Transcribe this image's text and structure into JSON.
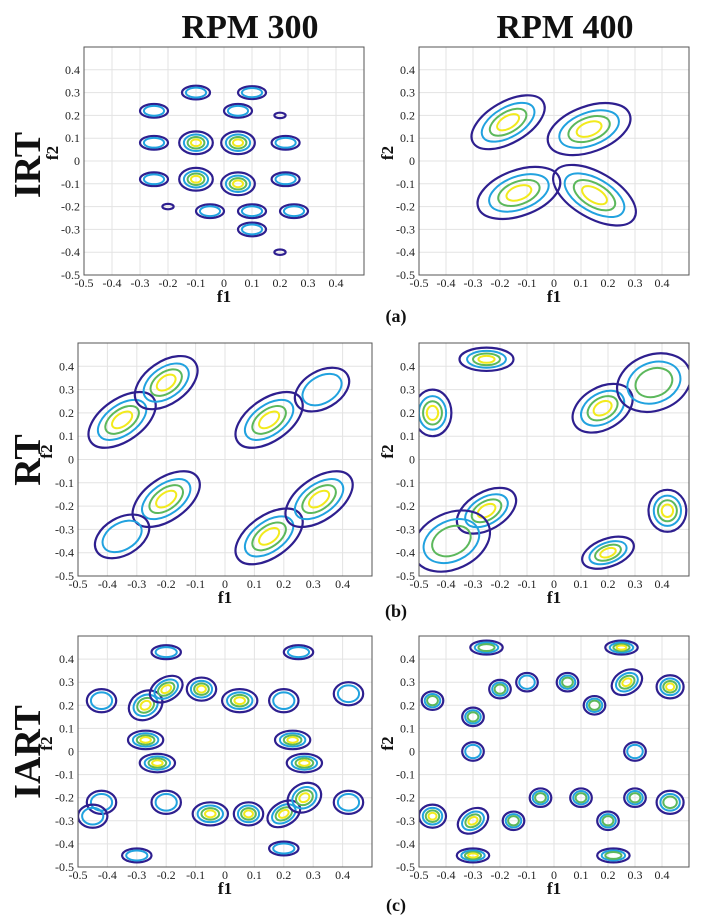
{
  "column_titles": [
    "RPM 300",
    "RPM 400"
  ],
  "row_titles": [
    "IRT",
    "RT",
    "IART"
  ],
  "panel_labels": [
    "(a)",
    "(b)",
    "(c)"
  ],
  "colors": {
    "level1": "#2e1f8f",
    "level2": "#21a2df",
    "level3": "#5cb85c",
    "level4": "#f2ea1c"
  },
  "chart_data": [
    {
      "type": "contour",
      "row": "IRT",
      "column": "RPM 300",
      "xlabel": "f1",
      "ylabel": "f2",
      "xlim": [
        -0.5,
        0.5
      ],
      "ylim": [
        -0.5,
        0.5
      ],
      "grid": true,
      "xticks": [
        "-0.5",
        "-0.4",
        "-0.3",
        "-0.2",
        "-0.1",
        "0",
        "0.1",
        "0.2",
        "0.3",
        "0.4"
      ],
      "yticks": [
        "0.4",
        "0.3",
        "0.2",
        "0.1",
        "0",
        "-0.1",
        "-0.2",
        "-0.3",
        "-0.4",
        "-0.5"
      ],
      "blobs": [
        {
          "cx": 0.1,
          "cy": 0.3,
          "rx": 0.05,
          "ry": 0.028,
          "angle": 0,
          "levels": 2
        },
        {
          "cx": -0.1,
          "cy": 0.3,
          "rx": 0.05,
          "ry": 0.03,
          "angle": 0,
          "levels": 2
        },
        {
          "cx": -0.25,
          "cy": 0.22,
          "rx": 0.05,
          "ry": 0.03,
          "angle": 0,
          "levels": 2
        },
        {
          "cx": 0.05,
          "cy": 0.22,
          "rx": 0.05,
          "ry": 0.03,
          "angle": 0,
          "levels": 2
        },
        {
          "cx": 0.2,
          "cy": 0.2,
          "rx": 0.02,
          "ry": 0.012,
          "angle": 0,
          "levels": 1
        },
        {
          "cx": -0.25,
          "cy": 0.08,
          "rx": 0.05,
          "ry": 0.03,
          "angle": 0,
          "levels": 2
        },
        {
          "cx": -0.1,
          "cy": 0.08,
          "rx": 0.06,
          "ry": 0.05,
          "angle": 0,
          "levels": 4
        },
        {
          "cx": 0.05,
          "cy": 0.08,
          "rx": 0.06,
          "ry": 0.05,
          "angle": 0,
          "levels": 4
        },
        {
          "cx": 0.22,
          "cy": 0.08,
          "rx": 0.05,
          "ry": 0.03,
          "angle": 0,
          "levels": 2
        },
        {
          "cx": -0.25,
          "cy": -0.08,
          "rx": 0.05,
          "ry": 0.03,
          "angle": 0,
          "levels": 2
        },
        {
          "cx": -0.1,
          "cy": -0.08,
          "rx": 0.06,
          "ry": 0.05,
          "angle": 0,
          "levels": 4
        },
        {
          "cx": 0.05,
          "cy": -0.1,
          "rx": 0.06,
          "ry": 0.05,
          "angle": 0,
          "levels": 4
        },
        {
          "cx": 0.22,
          "cy": -0.08,
          "rx": 0.05,
          "ry": 0.03,
          "angle": 0,
          "levels": 2
        },
        {
          "cx": -0.2,
          "cy": -0.2,
          "rx": 0.02,
          "ry": 0.012,
          "angle": 0,
          "levels": 1
        },
        {
          "cx": -0.05,
          "cy": -0.22,
          "rx": 0.05,
          "ry": 0.03,
          "angle": 0,
          "levels": 2
        },
        {
          "cx": 0.1,
          "cy": -0.22,
          "rx": 0.05,
          "ry": 0.03,
          "angle": 0,
          "levels": 2
        },
        {
          "cx": 0.25,
          "cy": -0.22,
          "rx": 0.05,
          "ry": 0.03,
          "angle": 0,
          "levels": 2
        },
        {
          "cx": 0.1,
          "cy": -0.3,
          "rx": 0.05,
          "ry": 0.03,
          "angle": 0,
          "levels": 2
        },
        {
          "cx": 0.2,
          "cy": -0.4,
          "rx": 0.02,
          "ry": 0.012,
          "angle": 0,
          "levels": 1
        }
      ]
    },
    {
      "type": "contour",
      "row": "IRT",
      "column": "RPM 400",
      "xlabel": "f1",
      "ylabel": "f2",
      "xlim": [
        -0.5,
        0.5
      ],
      "ylim": [
        -0.5,
        0.5
      ],
      "grid": true,
      "xticks": [
        "-0.5",
        "-0.4",
        "-0.3",
        "-0.2",
        "-0.1",
        "0",
        "0.1",
        "0.2",
        "0.3",
        "0.4"
      ],
      "yticks": [
        "0.4",
        "0.3",
        "0.2",
        "0.1",
        "0",
        "-0.1",
        "-0.2",
        "-0.3",
        "-0.4",
        "-0.5"
      ],
      "blobs": [
        {
          "cx": -0.17,
          "cy": 0.17,
          "rx": 0.15,
          "ry": 0.09,
          "angle": -30,
          "levels": 4
        },
        {
          "cx": 0.13,
          "cy": 0.14,
          "rx": 0.16,
          "ry": 0.1,
          "angle": -20,
          "levels": 4
        },
        {
          "cx": -0.13,
          "cy": -0.14,
          "rx": 0.16,
          "ry": 0.1,
          "angle": -20,
          "levels": 4
        },
        {
          "cx": 0.15,
          "cy": -0.15,
          "rx": 0.17,
          "ry": 0.1,
          "angle": 30,
          "levels": 4
        }
      ]
    },
    {
      "type": "contour",
      "row": "RT",
      "column": "RPM 300",
      "xlabel": "f1",
      "ylabel": "f2",
      "xlim": [
        -0.5,
        0.5
      ],
      "ylim": [
        -0.5,
        0.5
      ],
      "grid": true,
      "xticks": [
        "-0.5",
        "-0.4",
        "-0.3",
        "-0.2",
        "-0.1",
        "0",
        "0.1",
        "0.2",
        "0.3",
        "0.4"
      ],
      "yticks": [
        "0.4",
        "0.3",
        "0.2",
        "0.1",
        "0",
        "-0.1",
        "-0.2",
        "-0.3",
        "-0.4",
        "-0.5"
      ],
      "blobs": [
        {
          "cx": -0.35,
          "cy": 0.17,
          "rx": 0.13,
          "ry": 0.09,
          "angle": -35,
          "levels": 4
        },
        {
          "cx": -0.2,
          "cy": 0.33,
          "rx": 0.12,
          "ry": 0.09,
          "angle": -35,
          "levels": 4
        },
        {
          "cx": 0.15,
          "cy": 0.17,
          "rx": 0.13,
          "ry": 0.09,
          "angle": -35,
          "levels": 4
        },
        {
          "cx": 0.33,
          "cy": 0.3,
          "rx": 0.1,
          "ry": 0.08,
          "angle": -30,
          "levels": 2
        },
        {
          "cx": -0.2,
          "cy": -0.17,
          "rx": 0.13,
          "ry": 0.09,
          "angle": -35,
          "levels": 4
        },
        {
          "cx": -0.35,
          "cy": -0.33,
          "rx": 0.1,
          "ry": 0.08,
          "angle": -30,
          "levels": 2
        },
        {
          "cx": 0.15,
          "cy": -0.33,
          "rx": 0.13,
          "ry": 0.09,
          "angle": -35,
          "levels": 4
        },
        {
          "cx": 0.32,
          "cy": -0.17,
          "rx": 0.13,
          "ry": 0.09,
          "angle": -35,
          "levels": 4
        }
      ]
    },
    {
      "type": "contour",
      "row": "RT",
      "column": "RPM 400",
      "xlabel": "f1",
      "ylabel": "f2",
      "xlim": [
        -0.5,
        0.5
      ],
      "ylim": [
        -0.5,
        0.5
      ],
      "grid": true,
      "xticks": [
        "-0.5",
        "-0.4",
        "-0.3",
        "-0.2",
        "-0.1",
        "0",
        "0.1",
        "0.2",
        "0.3",
        "0.4"
      ],
      "yticks": [
        "0.4",
        "0.3",
        "0.2",
        "0.1",
        "0",
        "-0.1",
        "-0.2",
        "-0.3",
        "-0.4",
        "-0.5"
      ],
      "blobs": [
        {
          "cx": -0.25,
          "cy": 0.43,
          "rx": 0.1,
          "ry": 0.05,
          "angle": 0,
          "levels": 4
        },
        {
          "cx": -0.45,
          "cy": 0.2,
          "rx": 0.07,
          "ry": 0.1,
          "angle": 0,
          "levels": 4
        },
        {
          "cx": 0.18,
          "cy": 0.22,
          "rx": 0.12,
          "ry": 0.09,
          "angle": -30,
          "levels": 4
        },
        {
          "cx": 0.37,
          "cy": 0.33,
          "rx": 0.14,
          "ry": 0.12,
          "angle": -20,
          "levels": 3
        },
        {
          "cx": -0.25,
          "cy": -0.22,
          "rx": 0.12,
          "ry": 0.08,
          "angle": -30,
          "levels": 4
        },
        {
          "cx": -0.38,
          "cy": -0.35,
          "rx": 0.15,
          "ry": 0.12,
          "angle": -25,
          "levels": 3
        },
        {
          "cx": 0.2,
          "cy": -0.4,
          "rx": 0.1,
          "ry": 0.06,
          "angle": -20,
          "levels": 4
        },
        {
          "cx": 0.42,
          "cy": -0.22,
          "rx": 0.07,
          "ry": 0.09,
          "angle": 0,
          "levels": 4
        }
      ]
    },
    {
      "type": "contour",
      "row": "IART",
      "column": "RPM 300",
      "xlabel": "f1",
      "ylabel": "f2",
      "xlim": [
        -0.5,
        0.5
      ],
      "ylim": [
        -0.5,
        0.5
      ],
      "grid": true,
      "xticks": [
        "-0.5",
        "-0.4",
        "-0.3",
        "-0.2",
        "-0.1",
        "0",
        "0.1",
        "0.2",
        "0.3",
        "0.4"
      ],
      "yticks": [
        "0.4",
        "0.3",
        "0.2",
        "0.1",
        "0",
        "-0.1",
        "-0.2",
        "-0.3",
        "-0.4",
        "-0.5"
      ],
      "blobs": [
        {
          "cx": -0.2,
          "cy": 0.43,
          "rx": 0.05,
          "ry": 0.03,
          "angle": 0,
          "levels": 2
        },
        {
          "cx": 0.25,
          "cy": 0.43,
          "rx": 0.05,
          "ry": 0.03,
          "angle": 0,
          "levels": 2
        },
        {
          "cx": -0.42,
          "cy": 0.22,
          "rx": 0.05,
          "ry": 0.05,
          "angle": 0,
          "levels": 2
        },
        {
          "cx": -0.27,
          "cy": 0.2,
          "rx": 0.06,
          "ry": 0.06,
          "angle": -30,
          "levels": 4
        },
        {
          "cx": -0.2,
          "cy": 0.27,
          "rx": 0.06,
          "ry": 0.05,
          "angle": -30,
          "levels": 4
        },
        {
          "cx": -0.08,
          "cy": 0.27,
          "rx": 0.05,
          "ry": 0.05,
          "angle": 0,
          "levels": 4
        },
        {
          "cx": 0.05,
          "cy": 0.22,
          "rx": 0.06,
          "ry": 0.05,
          "angle": 0,
          "levels": 4
        },
        {
          "cx": 0.2,
          "cy": 0.22,
          "rx": 0.05,
          "ry": 0.05,
          "angle": 0,
          "levels": 2
        },
        {
          "cx": 0.42,
          "cy": 0.25,
          "rx": 0.05,
          "ry": 0.05,
          "angle": 0,
          "levels": 2
        },
        {
          "cx": -0.27,
          "cy": 0.05,
          "rx": 0.06,
          "ry": 0.04,
          "angle": 0,
          "levels": 4
        },
        {
          "cx": 0.23,
          "cy": 0.05,
          "rx": 0.06,
          "ry": 0.04,
          "angle": 0,
          "levels": 4
        },
        {
          "cx": -0.23,
          "cy": -0.05,
          "rx": 0.06,
          "ry": 0.04,
          "angle": 0,
          "levels": 4
        },
        {
          "cx": 0.27,
          "cy": -0.05,
          "rx": 0.06,
          "ry": 0.04,
          "angle": 0,
          "levels": 4
        },
        {
          "cx": -0.42,
          "cy": -0.22,
          "rx": 0.05,
          "ry": 0.05,
          "angle": 0,
          "levels": 2
        },
        {
          "cx": -0.2,
          "cy": -0.22,
          "rx": 0.05,
          "ry": 0.05,
          "angle": 0,
          "levels": 2
        },
        {
          "cx": -0.05,
          "cy": -0.27,
          "rx": 0.06,
          "ry": 0.05,
          "angle": 0,
          "levels": 4
        },
        {
          "cx": 0.08,
          "cy": -0.27,
          "rx": 0.05,
          "ry": 0.05,
          "angle": 0,
          "levels": 4
        },
        {
          "cx": 0.2,
          "cy": -0.27,
          "rx": 0.06,
          "ry": 0.05,
          "angle": -30,
          "levels": 4
        },
        {
          "cx": 0.27,
          "cy": -0.2,
          "rx": 0.06,
          "ry": 0.06,
          "angle": -30,
          "levels": 4
        },
        {
          "cx": 0.42,
          "cy": -0.22,
          "rx": 0.05,
          "ry": 0.05,
          "angle": 0,
          "levels": 2
        },
        {
          "cx": -0.45,
          "cy": -0.28,
          "rx": 0.05,
          "ry": 0.05,
          "angle": 0,
          "levels": 2
        },
        {
          "cx": -0.3,
          "cy": -0.45,
          "rx": 0.05,
          "ry": 0.03,
          "angle": 0,
          "levels": 2
        },
        {
          "cx": 0.2,
          "cy": -0.42,
          "rx": 0.05,
          "ry": 0.03,
          "angle": 0,
          "levels": 2
        }
      ]
    },
    {
      "type": "contour",
      "row": "IART",
      "column": "RPM 400",
      "xlabel": "f1",
      "ylabel": "f2",
      "xlim": [
        -0.5,
        0.5
      ],
      "ylim": [
        -0.5,
        0.5
      ],
      "grid": true,
      "xticks": [
        "-0.5",
        "-0.4",
        "-0.3",
        "-0.2",
        "-0.1",
        "0",
        "0.1",
        "0.2",
        "0.3",
        "0.4"
      ],
      "yticks": [
        "0.4",
        "0.3",
        "0.2",
        "0.1",
        "0",
        "-0.1",
        "-0.2",
        "-0.3",
        "-0.4",
        "-0.5"
      ],
      "blobs": [
        {
          "cx": -0.25,
          "cy": 0.45,
          "rx": 0.06,
          "ry": 0.03,
          "angle": 0,
          "levels": 3
        },
        {
          "cx": 0.25,
          "cy": 0.45,
          "rx": 0.06,
          "ry": 0.03,
          "angle": 0,
          "levels": 4
        },
        {
          "cx": -0.45,
          "cy": 0.22,
          "rx": 0.04,
          "ry": 0.04,
          "angle": 0,
          "levels": 3
        },
        {
          "cx": -0.3,
          "cy": 0.15,
          "rx": 0.04,
          "ry": 0.04,
          "angle": 0,
          "levels": 3
        },
        {
          "cx": -0.2,
          "cy": 0.27,
          "rx": 0.04,
          "ry": 0.04,
          "angle": 0,
          "levels": 3
        },
        {
          "cx": -0.1,
          "cy": 0.3,
          "rx": 0.04,
          "ry": 0.04,
          "angle": 0,
          "levels": 2
        },
        {
          "cx": 0.05,
          "cy": 0.3,
          "rx": 0.04,
          "ry": 0.04,
          "angle": 0,
          "levels": 3
        },
        {
          "cx": 0.15,
          "cy": 0.2,
          "rx": 0.04,
          "ry": 0.04,
          "angle": 0,
          "levels": 3
        },
        {
          "cx": 0.27,
          "cy": 0.3,
          "rx": 0.06,
          "ry": 0.05,
          "angle": -30,
          "levels": 4
        },
        {
          "cx": 0.43,
          "cy": 0.28,
          "rx": 0.05,
          "ry": 0.05,
          "angle": 0,
          "levels": 4
        },
        {
          "cx": -0.3,
          "cy": 0.0,
          "rx": 0.04,
          "ry": 0.04,
          "angle": 0,
          "levels": 2
        },
        {
          "cx": 0.3,
          "cy": 0.0,
          "rx": 0.04,
          "ry": 0.04,
          "angle": 0,
          "levels": 2
        },
        {
          "cx": -0.45,
          "cy": -0.28,
          "rx": 0.05,
          "ry": 0.05,
          "angle": 0,
          "levels": 4
        },
        {
          "cx": -0.3,
          "cy": -0.3,
          "rx": 0.06,
          "ry": 0.05,
          "angle": -30,
          "levels": 4
        },
        {
          "cx": -0.15,
          "cy": -0.3,
          "rx": 0.04,
          "ry": 0.04,
          "angle": 0,
          "levels": 3
        },
        {
          "cx": -0.05,
          "cy": -0.2,
          "rx": 0.04,
          "ry": 0.04,
          "angle": 0,
          "levels": 3
        },
        {
          "cx": 0.1,
          "cy": -0.2,
          "rx": 0.04,
          "ry": 0.04,
          "angle": 0,
          "levels": 3
        },
        {
          "cx": 0.2,
          "cy": -0.3,
          "rx": 0.04,
          "ry": 0.04,
          "angle": 0,
          "levels": 3
        },
        {
          "cx": 0.3,
          "cy": -0.2,
          "rx": 0.04,
          "ry": 0.04,
          "angle": 0,
          "levels": 3
        },
        {
          "cx": 0.43,
          "cy": -0.22,
          "rx": 0.05,
          "ry": 0.05,
          "angle": 0,
          "levels": 3
        },
        {
          "cx": -0.3,
          "cy": -0.45,
          "rx": 0.06,
          "ry": 0.03,
          "angle": 0,
          "levels": 4
        },
        {
          "cx": 0.22,
          "cy": -0.45,
          "rx": 0.06,
          "ry": 0.03,
          "angle": 0,
          "levels": 3
        }
      ]
    }
  ]
}
